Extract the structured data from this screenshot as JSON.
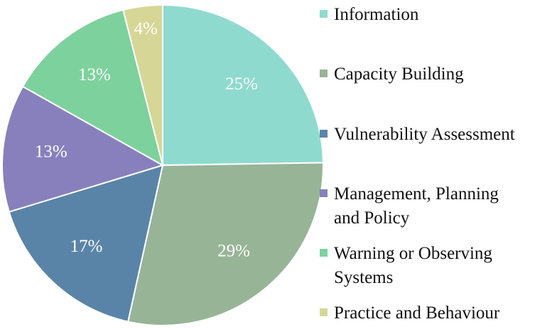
{
  "chart_data": {
    "type": "pie",
    "title": "",
    "start": "12 o'clock, clockwise",
    "legend_position": "right",
    "slices": [
      {
        "label": "Information",
        "value": 25,
        "display": "25%",
        "color": "#8FDACF"
      },
      {
        "label": "Capacity Building",
        "value": 29,
        "display": "29%",
        "color": "#98B497"
      },
      {
        "label": "Vulnerability Assessment",
        "value": 17,
        "display": "17%",
        "color": "#5984A8"
      },
      {
        "label": "Management, Planning and Policy",
        "value": 13,
        "display": "13%",
        "color": "#8880BC"
      },
      {
        "label": "Warning or Observing Systems",
        "value": 13,
        "display": "13%",
        "color": "#7DD19D"
      },
      {
        "label": "Practice and Behaviour",
        "value": 4,
        "display": "4%",
        "color": "#D6D796"
      }
    ]
  },
  "legend": {
    "items": [
      {
        "line1": "Information",
        "line2": ""
      },
      {
        "line1": "Capacity Building",
        "line2": ""
      },
      {
        "line1": "Vulnerability Assessment",
        "line2": ""
      },
      {
        "line1": "Management, Planning",
        "line2": "and Policy"
      },
      {
        "line1": "Warning or Observing",
        "line2": "Systems"
      },
      {
        "line1": "Practice and Behaviour",
        "line2": ""
      }
    ]
  }
}
